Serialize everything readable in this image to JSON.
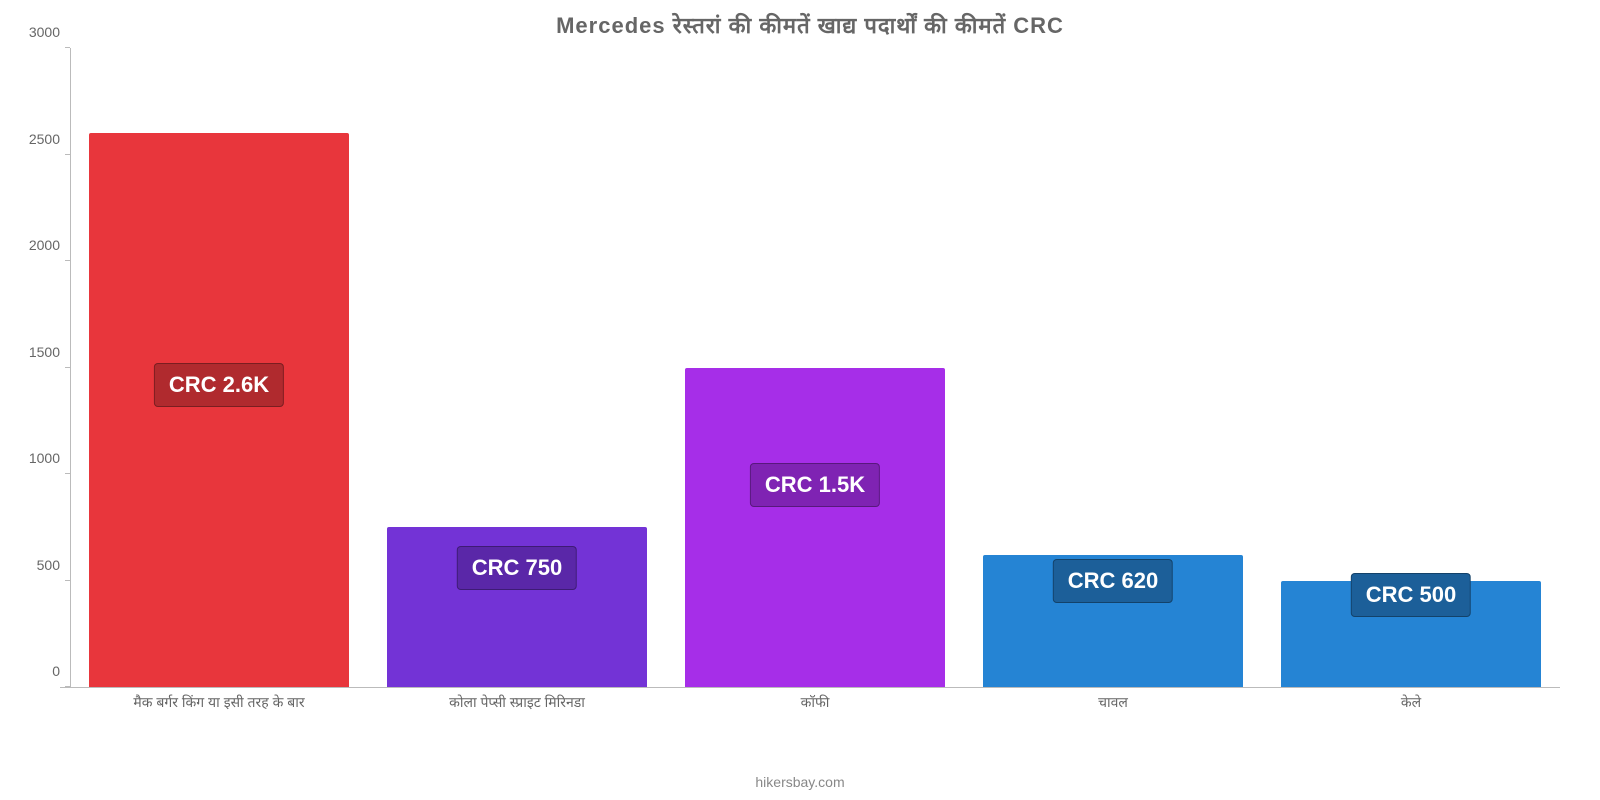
{
  "chart": {
    "type": "bar",
    "title": "Mercedes रेस्तरां  की  कीमतें  खाद्य  पदार्थों  की  कीमतें  CRC",
    "title_fontsize": 22,
    "title_color": "#666666",
    "background_color": "#ffffff",
    "axis_line_color": "#bbbbbb",
    "tick_label_color": "#666666",
    "tick_label_fontsize": 14,
    "ylim": [
      0,
      3000
    ],
    "ytick_step": 500,
    "yticks": [
      "0",
      "500",
      "1000",
      "1500",
      "2000",
      "2500",
      "3000"
    ],
    "bar_width": 0.87,
    "value_badge_fontsize": 22,
    "value_badge_text_color": "#ffffff",
    "categories": [
      "मैक बर्गर किंग या इसी तरह के बार",
      "कोला पेप्सी स्प्राइट मिरिनडा",
      "कॉफी",
      "चावल",
      "केले"
    ],
    "values": [
      2600,
      750,
      1500,
      620,
      500
    ],
    "value_labels": [
      "CRC 2.6K",
      "CRC 750",
      "CRC 1.5K",
      "CRC 620",
      "CRC 500"
    ],
    "bar_colors": [
      "#e8363c",
      "#7333d6",
      "#a62ee8",
      "#2584d4",
      "#2584d4"
    ],
    "badge_colors": [
      "#b02a2e",
      "#5a27a8",
      "#7f23b3",
      "#1c5f99",
      "#1c5f99"
    ],
    "badge_y_values": [
      1420,
      560,
      950,
      500,
      430
    ],
    "footer": "hikersbay.com",
    "footer_color": "#888888",
    "footer_fontsize": 14
  }
}
